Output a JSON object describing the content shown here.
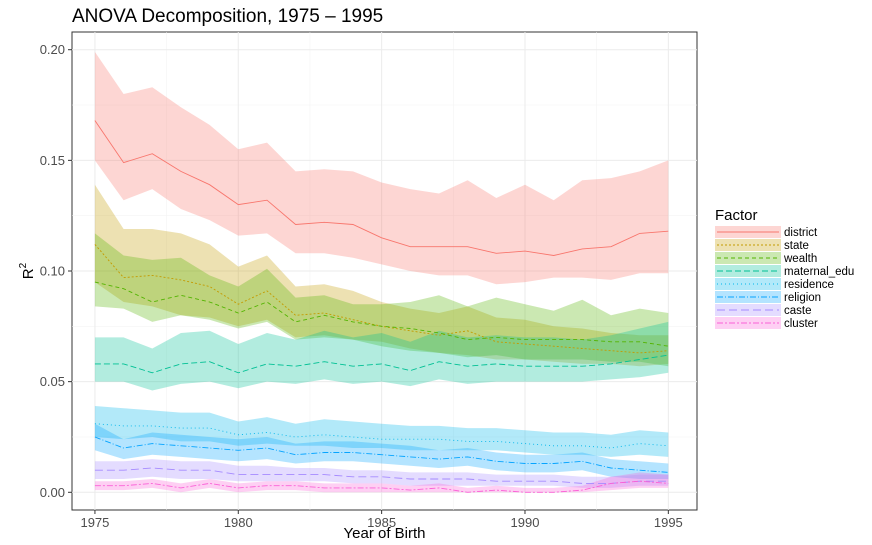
{
  "chart_data": {
    "type": "line",
    "title": "ANOVA Decomposition, 1975 – 1995",
    "xlabel": "Year of Birth",
    "ylabel": "R",
    "ylabel_superscript": "2",
    "xlim": [
      1974.2,
      1996.0
    ],
    "ylim": [
      -0.008,
      0.208
    ],
    "x_ticks": [
      1975,
      1980,
      1985,
      1990,
      1995
    ],
    "y_ticks": [
      0.0,
      0.05,
      0.1,
      0.15,
      0.2
    ],
    "y_tick_labels": [
      "0.00",
      "0.05",
      "0.10",
      "0.15",
      "0.20"
    ],
    "grid": true,
    "legend": {
      "title": "Factor",
      "placement": "right"
    },
    "x": [
      1975,
      1976,
      1977,
      1978,
      1979,
      1980,
      1981,
      1982,
      1983,
      1984,
      1985,
      1986,
      1987,
      1988,
      1989,
      1990,
      1991,
      1992,
      1993,
      1994,
      1995
    ],
    "series": [
      {
        "name": "district",
        "color": "#F8766D",
        "dash": "",
        "values": [
          0.168,
          0.149,
          0.153,
          0.145,
          0.139,
          0.13,
          0.132,
          0.121,
          0.122,
          0.121,
          0.115,
          0.111,
          0.111,
          0.111,
          0.108,
          0.109,
          0.107,
          0.11,
          0.111,
          0.117,
          0.118
        ],
        "lower": [
          0.15,
          0.132,
          0.137,
          0.128,
          0.123,
          0.116,
          0.117,
          0.108,
          0.108,
          0.106,
          0.103,
          0.1,
          0.098,
          0.098,
          0.094,
          0.095,
          0.097,
          0.097,
          0.096,
          0.099,
          0.099
        ],
        "upper": [
          0.199,
          0.18,
          0.183,
          0.174,
          0.166,
          0.155,
          0.158,
          0.145,
          0.146,
          0.145,
          0.14,
          0.137,
          0.135,
          0.141,
          0.133,
          0.139,
          0.132,
          0.141,
          0.142,
          0.145,
          0.15
        ]
      },
      {
        "name": "state",
        "color": "#C49A00",
        "dash": "2,2",
        "values": [
          0.112,
          0.097,
          0.098,
          0.096,
          0.093,
          0.085,
          0.091,
          0.08,
          0.081,
          0.078,
          0.075,
          0.073,
          0.071,
          0.073,
          0.068,
          0.067,
          0.066,
          0.065,
          0.064,
          0.063,
          0.064
        ],
        "lower": [
          0.095,
          0.086,
          0.084,
          0.08,
          0.079,
          0.075,
          0.078,
          0.07,
          0.071,
          0.069,
          0.068,
          0.065,
          0.063,
          0.062,
          0.06,
          0.06,
          0.059,
          0.058,
          0.058,
          0.057,
          0.058
        ],
        "upper": [
          0.139,
          0.119,
          0.119,
          0.117,
          0.112,
          0.102,
          0.107,
          0.093,
          0.094,
          0.091,
          0.086,
          0.083,
          0.081,
          0.084,
          0.079,
          0.078,
          0.075,
          0.074,
          0.072,
          0.071,
          0.071
        ]
      },
      {
        "name": "wealth",
        "color": "#53B400",
        "dash": "4,3",
        "values": [
          0.095,
          0.092,
          0.086,
          0.089,
          0.086,
          0.081,
          0.086,
          0.077,
          0.08,
          0.077,
          0.075,
          0.074,
          0.072,
          0.069,
          0.07,
          0.069,
          0.069,
          0.069,
          0.068,
          0.068,
          0.066
        ],
        "lower": [
          0.084,
          0.083,
          0.077,
          0.08,
          0.078,
          0.074,
          0.077,
          0.069,
          0.07,
          0.069,
          0.066,
          0.064,
          0.063,
          0.061,
          0.062,
          0.06,
          0.06,
          0.06,
          0.059,
          0.059,
          0.057
        ],
        "upper": [
          0.117,
          0.107,
          0.105,
          0.106,
          0.098,
          0.093,
          0.101,
          0.088,
          0.089,
          0.085,
          0.085,
          0.086,
          0.089,
          0.084,
          0.088,
          0.085,
          0.082,
          0.087,
          0.08,
          0.083,
          0.081
        ]
      },
      {
        "name": "maternal_edu",
        "color": "#00C094",
        "dash": "6,3",
        "values": [
          0.058,
          0.058,
          0.054,
          0.058,
          0.059,
          0.054,
          0.058,
          0.057,
          0.059,
          0.057,
          0.058,
          0.055,
          0.059,
          0.057,
          0.058,
          0.057,
          0.057,
          0.057,
          0.058,
          0.06,
          0.062
        ],
        "lower": [
          0.05,
          0.05,
          0.046,
          0.049,
          0.05,
          0.047,
          0.05,
          0.049,
          0.051,
          0.049,
          0.05,
          0.048,
          0.051,
          0.049,
          0.05,
          0.05,
          0.05,
          0.05,
          0.051,
          0.052,
          0.054
        ],
        "upper": [
          0.07,
          0.07,
          0.065,
          0.072,
          0.073,
          0.067,
          0.072,
          0.069,
          0.073,
          0.07,
          0.072,
          0.068,
          0.073,
          0.07,
          0.071,
          0.07,
          0.07,
          0.069,
          0.071,
          0.074,
          0.077
        ]
      },
      {
        "name": "residence",
        "color": "#00B6EB",
        "dash": "1,3",
        "values": [
          0.031,
          0.03,
          0.03,
          0.029,
          0.029,
          0.026,
          0.027,
          0.025,
          0.026,
          0.025,
          0.024,
          0.024,
          0.024,
          0.023,
          0.023,
          0.022,
          0.021,
          0.021,
          0.02,
          0.022,
          0.021
        ],
        "lower": [
          0.025,
          0.024,
          0.025,
          0.023,
          0.023,
          0.021,
          0.022,
          0.021,
          0.021,
          0.02,
          0.02,
          0.019,
          0.019,
          0.019,
          0.019,
          0.018,
          0.017,
          0.017,
          0.016,
          0.017,
          0.016
        ],
        "upper": [
          0.039,
          0.038,
          0.037,
          0.036,
          0.036,
          0.032,
          0.034,
          0.031,
          0.033,
          0.032,
          0.031,
          0.03,
          0.03,
          0.029,
          0.029,
          0.028,
          0.027,
          0.027,
          0.026,
          0.028,
          0.027
        ]
      },
      {
        "name": "religion",
        "color": "#06A4FF",
        "dash": "6,2,1,2",
        "values": [
          0.025,
          0.02,
          0.022,
          0.021,
          0.02,
          0.019,
          0.02,
          0.017,
          0.018,
          0.018,
          0.017,
          0.016,
          0.015,
          0.016,
          0.014,
          0.013,
          0.013,
          0.014,
          0.011,
          0.01,
          0.009
        ],
        "lower": [
          0.019,
          0.015,
          0.017,
          0.016,
          0.015,
          0.014,
          0.015,
          0.013,
          0.014,
          0.014,
          0.013,
          0.012,
          0.011,
          0.012,
          0.01,
          0.009,
          0.009,
          0.01,
          0.007,
          0.006,
          0.006
        ],
        "upper": [
          0.031,
          0.024,
          0.027,
          0.026,
          0.025,
          0.024,
          0.025,
          0.022,
          0.023,
          0.023,
          0.022,
          0.021,
          0.019,
          0.02,
          0.018,
          0.017,
          0.017,
          0.018,
          0.015,
          0.014,
          0.013
        ]
      },
      {
        "name": "caste",
        "color": "#A58AFF",
        "dash": "8,4",
        "values": [
          0.01,
          0.01,
          0.011,
          0.01,
          0.01,
          0.008,
          0.008,
          0.008,
          0.008,
          0.007,
          0.007,
          0.006,
          0.006,
          0.006,
          0.005,
          0.005,
          0.005,
          0.004,
          0.004,
          0.005,
          0.005
        ],
        "lower": [
          0.006,
          0.006,
          0.007,
          0.006,
          0.006,
          0.005,
          0.005,
          0.005,
          0.005,
          0.004,
          0.004,
          0.003,
          0.003,
          0.003,
          0.003,
          0.003,
          0.003,
          0.002,
          0.002,
          0.003,
          0.003
        ],
        "upper": [
          0.014,
          0.014,
          0.015,
          0.014,
          0.014,
          0.012,
          0.012,
          0.011,
          0.011,
          0.01,
          0.01,
          0.009,
          0.009,
          0.009,
          0.008,
          0.008,
          0.008,
          0.007,
          0.007,
          0.008,
          0.008
        ]
      },
      {
        "name": "cluster",
        "color": "#FB61D7",
        "dash": "6,2,2,2",
        "values": [
          0.003,
          0.003,
          0.004,
          0.002,
          0.004,
          0.002,
          0.003,
          0.003,
          0.002,
          0.002,
          0.002,
          0.001,
          0.002,
          0.0,
          0.001,
          0.0,
          0.0,
          0.001,
          0.004,
          0.005,
          0.004
        ],
        "lower": [
          0.001,
          0.001,
          0.002,
          0.0,
          0.002,
          0.0,
          0.001,
          0.001,
          0.0,
          0.0,
          0.0,
          0.0,
          0.0,
          0.0,
          0.0,
          0.0,
          0.0,
          0.0,
          0.001,
          0.002,
          0.002
        ],
        "upper": [
          0.005,
          0.005,
          0.006,
          0.004,
          0.006,
          0.004,
          0.005,
          0.005,
          0.004,
          0.004,
          0.004,
          0.003,
          0.004,
          0.002,
          0.003,
          0.002,
          0.002,
          0.003,
          0.007,
          0.009,
          0.008
        ]
      }
    ]
  }
}
